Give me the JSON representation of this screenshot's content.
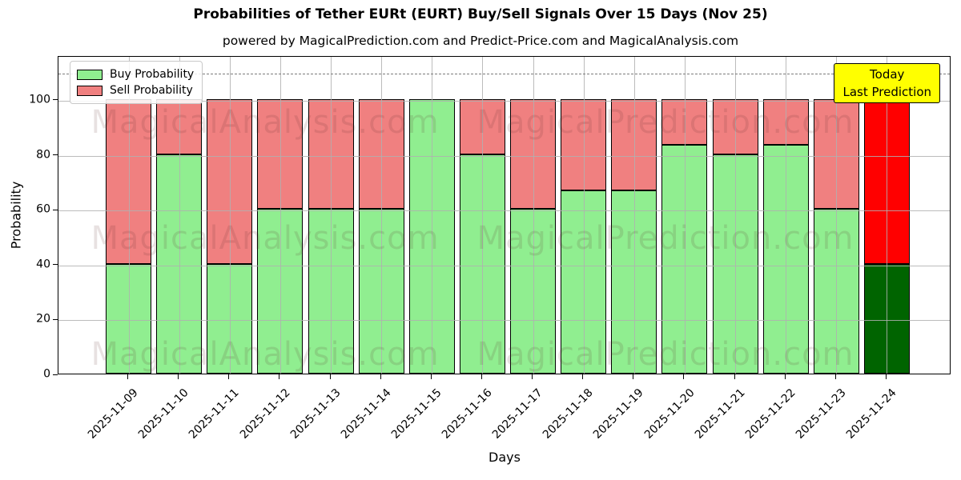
{
  "title": "Probabilities of Tether EURt (EURT) Buy/Sell Signals Over 15 Days (Nov 25)",
  "subtitle": "powered by MagicalPrediction.com and Predict-Price.com and MagicalAnalysis.com",
  "axes": {
    "x_label": "Days",
    "y_label": "Probability",
    "y_ticks": [
      0,
      20,
      40,
      60,
      80,
      100
    ],
    "y_max": 116,
    "dashed_guide_y": 110
  },
  "legend": {
    "items": [
      {
        "label": "Buy Probability",
        "color": "#90EE90"
      },
      {
        "label": "Sell Probability",
        "color": "#F08080"
      }
    ]
  },
  "annotation_box": {
    "lines": [
      "Today",
      "Last Prediction"
    ],
    "bg_color": "#FFFF00"
  },
  "watermarks": {
    "left": "MagicalAnalysis.com",
    "right": "MagicalPrediction.com"
  },
  "colors": {
    "buy": "#90EE90",
    "sell": "#F08080",
    "today_buy": "#006400",
    "today_sell": "#FF0000",
    "bar_edge": "#000000",
    "grid": "#b0b0b0",
    "dashed_line": "#7a7a7a",
    "annotation_bg": "#FFFF00"
  },
  "chart_data": {
    "type": "bar",
    "stacked": true,
    "title": "Probabilities of Tether EURt (EURT) Buy/Sell Signals Over 15 Days (Nov 25)",
    "xlabel": "Days",
    "ylabel": "Probability",
    "ylim": [
      0,
      116
    ],
    "grid": true,
    "legend_position": "upper left",
    "categories": [
      "2025-11-09",
      "2025-11-10",
      "2025-11-11",
      "2025-11-12",
      "2025-11-13",
      "2025-11-14",
      "2025-11-15",
      "2025-11-16",
      "2025-11-17",
      "2025-11-18",
      "2025-11-19",
      "2025-11-20",
      "2025-11-21",
      "2025-11-22",
      "2025-11-23",
      "2025-11-24"
    ],
    "series": [
      {
        "name": "Buy Probability",
        "values": [
          40,
          80,
          40,
          60,
          60,
          60,
          100,
          80,
          60,
          66.67,
          66.67,
          83.33,
          80,
          83.33,
          60,
          40
        ]
      },
      {
        "name": "Sell Probability",
        "values": [
          60,
          20,
          60,
          40,
          40,
          40,
          0,
          20,
          40,
          33.33,
          33.33,
          16.67,
          20,
          16.67,
          40,
          60
        ]
      }
    ],
    "today_index": 15,
    "dashed_guide_y": 110,
    "annotation": "Today / Last Prediction"
  }
}
